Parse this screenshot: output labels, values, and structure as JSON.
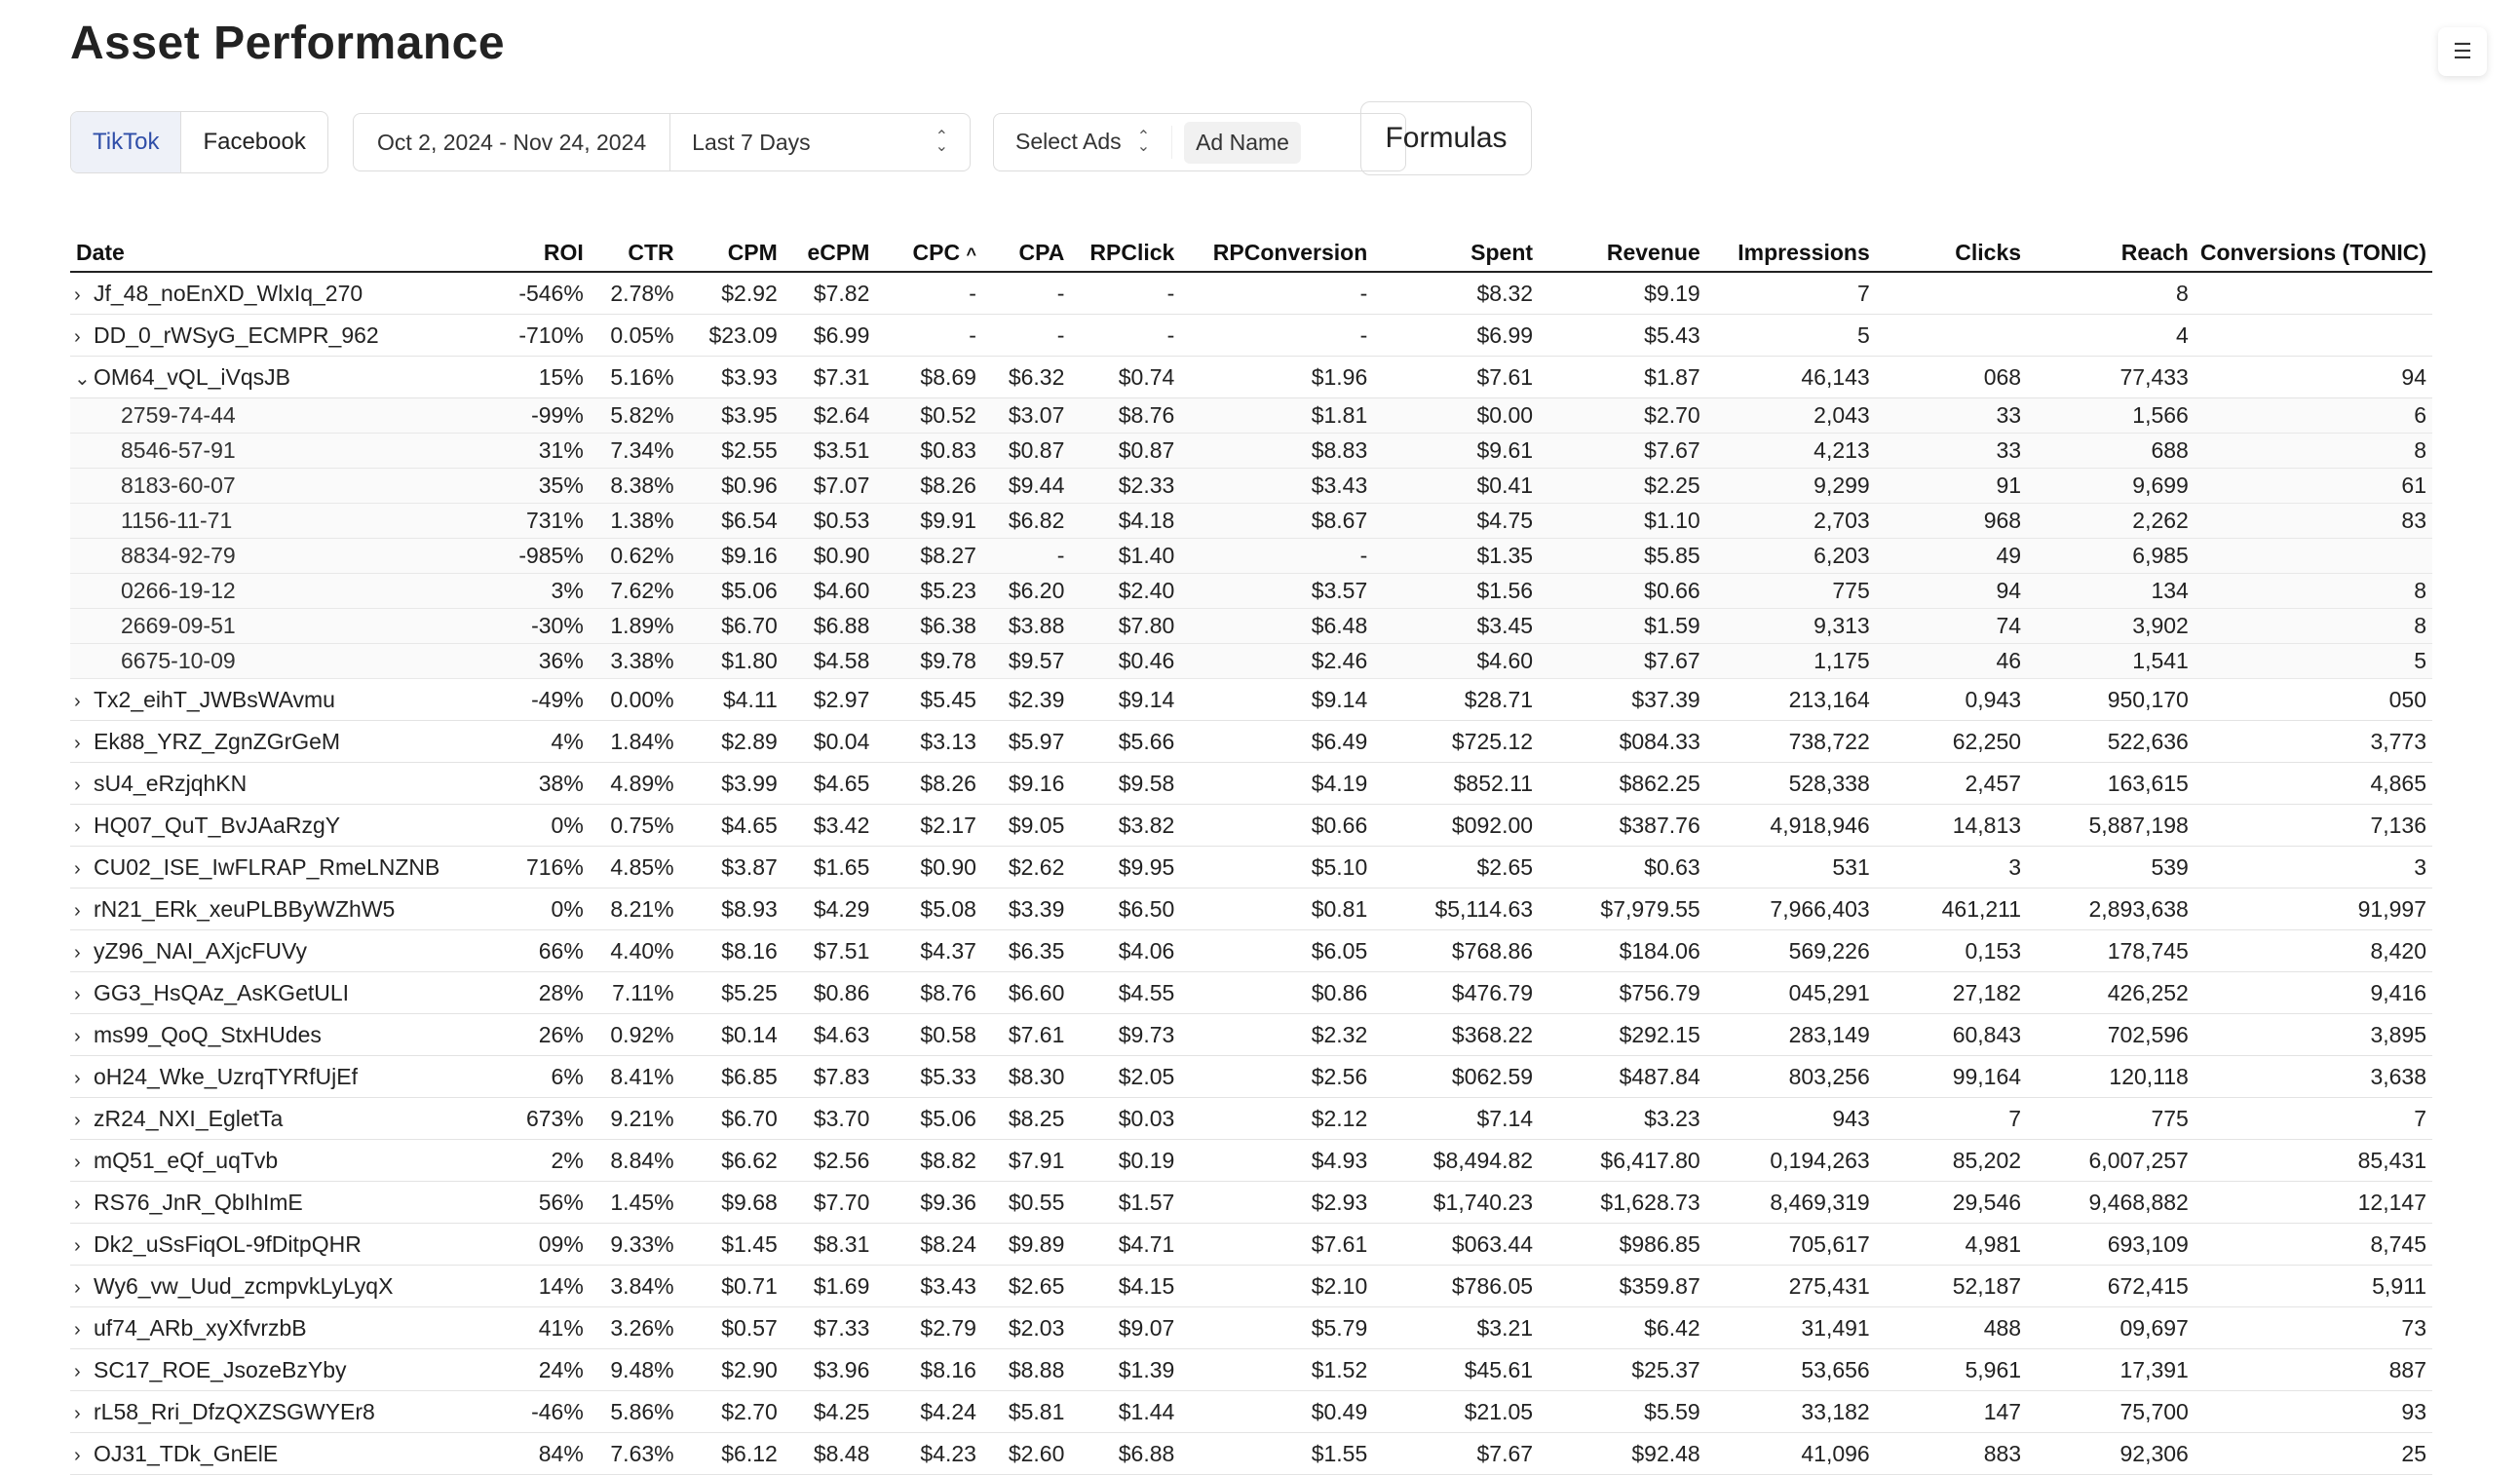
{
  "title": "Asset Performance",
  "menu_icon": "☰",
  "platforms": {
    "tiktok": "TikTok",
    "facebook": "Facebook"
  },
  "date": {
    "range": "Oct 2, 2024 - Nov 24, 2024",
    "preset": "Last 7 Days"
  },
  "ads": {
    "select_label": "Select Ads",
    "chip": "Ad Name"
  },
  "formulas_label": "Formulas",
  "columns": [
    "Date",
    "ROI",
    "CTR",
    "CPM",
    "eCPM",
    "CPC",
    "CPA",
    "RPClick",
    "RPConversion",
    "Spent",
    "Revenue",
    "Impressions",
    "Clicks",
    "Reach",
    "Conversions (TONIC)"
  ],
  "sort_indicator": "^",
  "rows": [
    {
      "name": "Jf_48_noEnXD_WlxIq_270",
      "roi": "-546%",
      "ctr": "2.78%",
      "cpm": "$2.92",
      "ecpm": "$7.82",
      "cpc": "-",
      "cpa": "-",
      "rpclick": "-",
      "rpconv": "-",
      "spent": "$8.32",
      "revenue": "$9.19",
      "impressions": "7",
      "clicks": "",
      "reach": "8",
      "conversions": ""
    },
    {
      "name": "DD_0_rWSyG_ECMPR_962",
      "roi": "-710%",
      "ctr": "0.05%",
      "cpm": "$23.09",
      "ecpm": "$6.99",
      "cpc": "-",
      "cpa": "-",
      "rpclick": "-",
      "rpconv": "-",
      "spent": "$6.99",
      "revenue": "$5.43",
      "impressions": "5",
      "clicks": "",
      "reach": "4",
      "conversions": ""
    },
    {
      "name": "OM64_vQL_iVqsJB",
      "expanded": true,
      "roi": "15%",
      "ctr": "5.16%",
      "cpm": "$3.93",
      "ecpm": "$7.31",
      "cpc": "$8.69",
      "cpa": "$6.32",
      "rpclick": "$0.74",
      "rpconv": "$1.96",
      "spent": "$7.61",
      "revenue": "$1.87",
      "impressions": "46,143",
      "clicks": "068",
      "reach": "77,433",
      "conversions": "94"
    },
    {
      "sub": true,
      "name": "2759-74-44",
      "roi": "-99%",
      "ctr": "5.82%",
      "cpm": "$3.95",
      "ecpm": "$2.64",
      "cpc": "$0.52",
      "cpa": "$3.07",
      "rpclick": "$8.76",
      "rpconv": "$1.81",
      "spent": "$0.00",
      "revenue": "$2.70",
      "impressions": "2,043",
      "clicks": "33",
      "reach": "1,566",
      "conversions": "6"
    },
    {
      "sub": true,
      "name": "8546-57-91",
      "roi": "31%",
      "ctr": "7.34%",
      "cpm": "$2.55",
      "ecpm": "$3.51",
      "cpc": "$0.83",
      "cpa": "$0.87",
      "rpclick": "$0.87",
      "rpconv": "$8.83",
      "spent": "$9.61",
      "revenue": "$7.67",
      "impressions": "4,213",
      "clicks": "33",
      "reach": "688",
      "conversions": "8"
    },
    {
      "sub": true,
      "name": "8183-60-07",
      "roi": "35%",
      "ctr": "8.38%",
      "cpm": "$0.96",
      "ecpm": "$7.07",
      "cpc": "$8.26",
      "cpa": "$9.44",
      "rpclick": "$2.33",
      "rpconv": "$3.43",
      "spent": "$0.41",
      "revenue": "$2.25",
      "impressions": "9,299",
      "clicks": "91",
      "reach": "9,699",
      "conversions": "61"
    },
    {
      "sub": true,
      "name": "1156-11-71",
      "roi": "731%",
      "ctr": "1.38%",
      "cpm": "$6.54",
      "ecpm": "$0.53",
      "cpc": "$9.91",
      "cpa": "$6.82",
      "rpclick": "$4.18",
      "rpconv": "$8.67",
      "spent": "$4.75",
      "revenue": "$1.10",
      "impressions": "2,703",
      "clicks": "968",
      "reach": "2,262",
      "conversions": "83"
    },
    {
      "sub": true,
      "name": "8834-92-79",
      "roi": "-985%",
      "ctr": "0.62%",
      "cpm": "$9.16",
      "ecpm": "$0.90",
      "cpc": "$8.27",
      "cpa": "-",
      "rpclick": "$1.40",
      "rpconv": "-",
      "spent": "$1.35",
      "revenue": "$5.85",
      "impressions": "6,203",
      "clicks": "49",
      "reach": "6,985",
      "conversions": ""
    },
    {
      "sub": true,
      "name": "0266-19-12",
      "roi": "3%",
      "ctr": "7.62%",
      "cpm": "$5.06",
      "ecpm": "$4.60",
      "cpc": "$5.23",
      "cpa": "$6.20",
      "rpclick": "$2.40",
      "rpconv": "$3.57",
      "spent": "$1.56",
      "revenue": "$0.66",
      "impressions": "775",
      "clicks": "94",
      "reach": "134",
      "conversions": "8"
    },
    {
      "sub": true,
      "name": "2669-09-51",
      "roi": "-30%",
      "ctr": "1.89%",
      "cpm": "$6.70",
      "ecpm": "$6.88",
      "cpc": "$6.38",
      "cpa": "$3.88",
      "rpclick": "$7.80",
      "rpconv": "$6.48",
      "spent": "$3.45",
      "revenue": "$1.59",
      "impressions": "9,313",
      "clicks": "74",
      "reach": "3,902",
      "conversions": "8"
    },
    {
      "sub": true,
      "name": "6675-10-09",
      "roi": "36%",
      "ctr": "3.38%",
      "cpm": "$1.80",
      "ecpm": "$4.58",
      "cpc": "$9.78",
      "cpa": "$9.57",
      "rpclick": "$0.46",
      "rpconv": "$2.46",
      "spent": "$4.60",
      "revenue": "$7.67",
      "impressions": "1,175",
      "clicks": "46",
      "reach": "1,541",
      "conversions": "5"
    },
    {
      "name": "Tx2_eihT_JWBsWAvmu",
      "roi": "-49%",
      "ctr": "0.00%",
      "cpm": "$4.11",
      "ecpm": "$2.97",
      "cpc": "$5.45",
      "cpa": "$2.39",
      "rpclick": "$9.14",
      "rpconv": "$9.14",
      "spent": "$28.71",
      "revenue": "$37.39",
      "impressions": "213,164",
      "clicks": "0,943",
      "reach": "950,170",
      "conversions": "050"
    },
    {
      "name": "Ek88_YRZ_ZgnZGrGeM",
      "roi": "4%",
      "ctr": "1.84%",
      "cpm": "$2.89",
      "ecpm": "$0.04",
      "cpc": "$3.13",
      "cpa": "$5.97",
      "rpclick": "$5.66",
      "rpconv": "$6.49",
      "spent": "$725.12",
      "revenue": "$084.33",
      "impressions": "738,722",
      "clicks": "62,250",
      "reach": "522,636",
      "conversions": "3,773"
    },
    {
      "name": "sU4_eRzjqhKN",
      "roi": "38%",
      "ctr": "4.89%",
      "cpm": "$3.99",
      "ecpm": "$4.65",
      "cpc": "$8.26",
      "cpa": "$9.16",
      "rpclick": "$9.58",
      "rpconv": "$4.19",
      "spent": "$852.11",
      "revenue": "$862.25",
      "impressions": "528,338",
      "clicks": "2,457",
      "reach": "163,615",
      "conversions": "4,865"
    },
    {
      "name": "HQ07_QuT_BvJAaRzgY",
      "roi": "0%",
      "ctr": "0.75%",
      "cpm": "$4.65",
      "ecpm": "$3.42",
      "cpc": "$2.17",
      "cpa": "$9.05",
      "rpclick": "$3.82",
      "rpconv": "$0.66",
      "spent": "$092.00",
      "revenue": "$387.76",
      "impressions": "4,918,946",
      "clicks": "14,813",
      "reach": "5,887,198",
      "conversions": "7,136"
    },
    {
      "name": "CU02_ISE_IwFLRAP_RmeLNZNB",
      "roi": "716%",
      "ctr": "4.85%",
      "cpm": "$3.87",
      "ecpm": "$1.65",
      "cpc": "$0.90",
      "cpa": "$2.62",
      "rpclick": "$9.95",
      "rpconv": "$5.10",
      "spent": "$2.65",
      "revenue": "$0.63",
      "impressions": "531",
      "clicks": "3",
      "reach": "539",
      "conversions": "3"
    },
    {
      "name": "rN21_ERk_xeuPLBByWZhW5",
      "roi": "0%",
      "ctr": "8.21%",
      "cpm": "$8.93",
      "ecpm": "$4.29",
      "cpc": "$5.08",
      "cpa": "$3.39",
      "rpclick": "$6.50",
      "rpconv": "$0.81",
      "spent": "$5,114.63",
      "revenue": "$7,979.55",
      "impressions": "7,966,403",
      "clicks": "461,211",
      "reach": "2,893,638",
      "conversions": "91,997"
    },
    {
      "name": "yZ96_NAI_AXjcFUVy",
      "roi": "66%",
      "ctr": "4.40%",
      "cpm": "$8.16",
      "ecpm": "$7.51",
      "cpc": "$4.37",
      "cpa": "$6.35",
      "rpclick": "$4.06",
      "rpconv": "$6.05",
      "spent": "$768.86",
      "revenue": "$184.06",
      "impressions": "569,226",
      "clicks": "0,153",
      "reach": "178,745",
      "conversions": "8,420"
    },
    {
      "name": "GG3_HsQAz_AsKGetULI",
      "roi": "28%",
      "ctr": "7.11%",
      "cpm": "$5.25",
      "ecpm": "$0.86",
      "cpc": "$8.76",
      "cpa": "$6.60",
      "rpclick": "$4.55",
      "rpconv": "$0.86",
      "spent": "$476.79",
      "revenue": "$756.79",
      "impressions": "045,291",
      "clicks": "27,182",
      "reach": "426,252",
      "conversions": "9,416"
    },
    {
      "name": "ms99_QoQ_StxHUdes",
      "roi": "26%",
      "ctr": "0.92%",
      "cpm": "$0.14",
      "ecpm": "$4.63",
      "cpc": "$0.58",
      "cpa": "$7.61",
      "rpclick": "$9.73",
      "rpconv": "$2.32",
      "spent": "$368.22",
      "revenue": "$292.15",
      "impressions": "283,149",
      "clicks": "60,843",
      "reach": "702,596",
      "conversions": "3,895"
    },
    {
      "name": "oH24_Wke_UzrqTYRfUjEf",
      "roi": "6%",
      "ctr": "8.41%",
      "cpm": "$6.85",
      "ecpm": "$7.83",
      "cpc": "$5.33",
      "cpa": "$8.30",
      "rpclick": "$2.05",
      "rpconv": "$2.56",
      "spent": "$062.59",
      "revenue": "$487.84",
      "impressions": "803,256",
      "clicks": "99,164",
      "reach": "120,118",
      "conversions": "3,638"
    },
    {
      "name": "zR24_NXI_EgletTa",
      "roi": "673%",
      "ctr": "9.21%",
      "cpm": "$6.70",
      "ecpm": "$3.70",
      "cpc": "$5.06",
      "cpa": "$8.25",
      "rpclick": "$0.03",
      "rpconv": "$2.12",
      "spent": "$7.14",
      "revenue": "$3.23",
      "impressions": "943",
      "clicks": "7",
      "reach": "775",
      "conversions": "7"
    },
    {
      "name": "mQ51_eQf_uqTvb",
      "roi": "2%",
      "ctr": "8.84%",
      "cpm": "$6.62",
      "ecpm": "$2.56",
      "cpc": "$8.82",
      "cpa": "$7.91",
      "rpclick": "$0.19",
      "rpconv": "$4.93",
      "spent": "$8,494.82",
      "revenue": "$6,417.80",
      "impressions": "0,194,263",
      "clicks": "85,202",
      "reach": "6,007,257",
      "conversions": "85,431"
    },
    {
      "name": "RS76_JnR_QbIhImE",
      "roi": "56%",
      "ctr": "1.45%",
      "cpm": "$9.68",
      "ecpm": "$7.70",
      "cpc": "$9.36",
      "cpa": "$0.55",
      "rpclick": "$1.57",
      "rpconv": "$2.93",
      "spent": "$1,740.23",
      "revenue": "$1,628.73",
      "impressions": "8,469,319",
      "clicks": "29,546",
      "reach": "9,468,882",
      "conversions": "12,147"
    },
    {
      "name": "Dk2_uSsFiqOL-9fDitpQHR",
      "roi": "09%",
      "ctr": "9.33%",
      "cpm": "$1.45",
      "ecpm": "$8.31",
      "cpc": "$8.24",
      "cpa": "$9.89",
      "rpclick": "$4.71",
      "rpconv": "$7.61",
      "spent": "$063.44",
      "revenue": "$986.85",
      "impressions": "705,617",
      "clicks": "4,981",
      "reach": "693,109",
      "conversions": "8,745"
    },
    {
      "name": "Wy6_vw_Uud_zcmpvkLyLyqX",
      "roi": "14%",
      "ctr": "3.84%",
      "cpm": "$0.71",
      "ecpm": "$1.69",
      "cpc": "$3.43",
      "cpa": "$2.65",
      "rpclick": "$4.15",
      "rpconv": "$2.10",
      "spent": "$786.05",
      "revenue": "$359.87",
      "impressions": "275,431",
      "clicks": "52,187",
      "reach": "672,415",
      "conversions": "5,911"
    },
    {
      "name": "uf74_ARb_xyXfvrzbB",
      "roi": "41%",
      "ctr": "3.26%",
      "cpm": "$0.57",
      "ecpm": "$7.33",
      "cpc": "$2.79",
      "cpa": "$2.03",
      "rpclick": "$9.07",
      "rpconv": "$5.79",
      "spent": "$3.21",
      "revenue": "$6.42",
      "impressions": "31,491",
      "clicks": "488",
      "reach": "09,697",
      "conversions": "73"
    },
    {
      "name": "SC17_ROE_JsozeBzYby",
      "roi": "24%",
      "ctr": "9.48%",
      "cpm": "$2.90",
      "ecpm": "$3.96",
      "cpc": "$8.16",
      "cpa": "$8.88",
      "rpclick": "$1.39",
      "rpconv": "$1.52",
      "spent": "$45.61",
      "revenue": "$25.37",
      "impressions": "53,656",
      "clicks": "5,961",
      "reach": "17,391",
      "conversions": "887"
    },
    {
      "name": "rL58_Rri_DfzQXZSGWYEr8",
      "roi": "-46%",
      "ctr": "5.86%",
      "cpm": "$2.70",
      "ecpm": "$4.25",
      "cpc": "$4.24",
      "cpa": "$5.81",
      "rpclick": "$1.44",
      "rpconv": "$0.49",
      "spent": "$21.05",
      "revenue": "$5.59",
      "impressions": "33,182",
      "clicks": "147",
      "reach": "75,700",
      "conversions": "93"
    },
    {
      "name": "OJ31_TDk_GnElE",
      "roi": "84%",
      "ctr": "7.63%",
      "cpm": "$6.12",
      "ecpm": "$8.48",
      "cpc": "$4.23",
      "cpa": "$2.60",
      "rpclick": "$6.88",
      "rpconv": "$1.55",
      "spent": "$7.67",
      "revenue": "$92.48",
      "impressions": "41,096",
      "clicks": "883",
      "reach": "92,306",
      "conversions": "25"
    }
  ],
  "cell_colors": {
    "cg1": "#8cc37a",
    "cg2": "#a8d49b",
    "cg3": "#c9e5c0",
    "cr1": "#d9534f",
    "cr2": "#e48a88",
    "cr3": "#efb9b8",
    "cr4": "#f7dddd"
  }
}
